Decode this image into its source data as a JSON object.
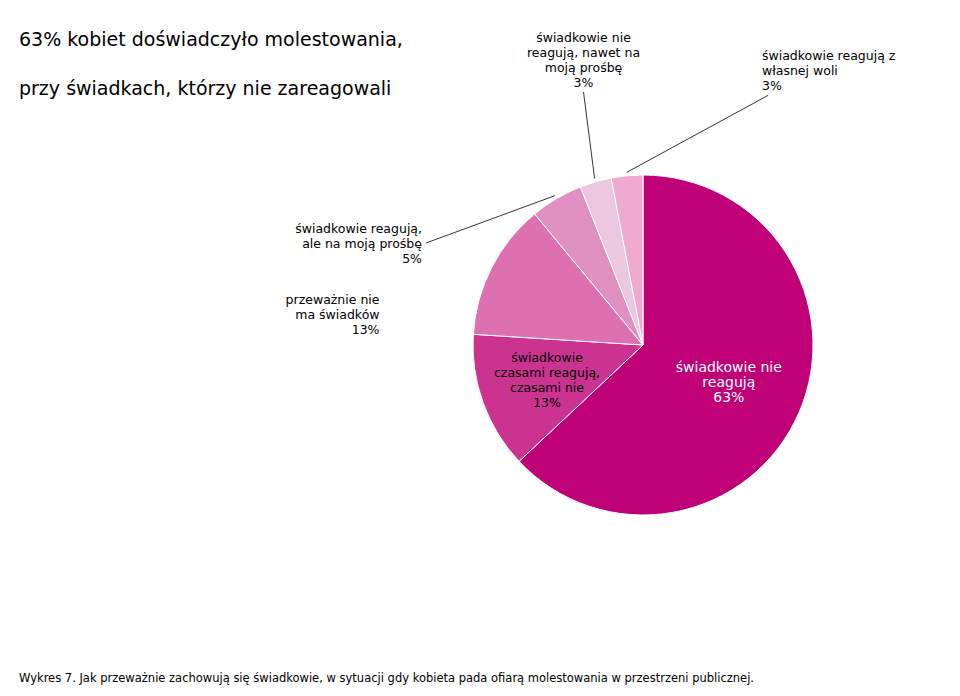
{
  "chart_data": {
    "type": "pie",
    "title": "63% kobiet doświadczyło molestowania,\nprzy świadkach, którzy nie zareagowali",
    "categories": [
      "świadkowie nie\nreagują",
      "świadkowie\nczasami reagują,\nczasami nie",
      "przeważnie nie\nma świadków",
      "świadkowie reagują,\nale na moją prośbę",
      "świadkowie nie\nreagują, nawet na\nmoją prośbę",
      "świadkowie reagują z\nwłasnej woli"
    ],
    "values": [
      63,
      13,
      13,
      5,
      3,
      3
    ],
    "value_labels": [
      "63%",
      "13%",
      "13%",
      "5%",
      "3%",
      "3%"
    ],
    "colors": [
      "#BF0077",
      "#CC3390",
      "#DD70B0",
      "#E090C0",
      "#ECC8E0",
      "#F0AACF"
    ],
    "data_labels": true,
    "caption": "Wykres 7. Jak przeważnie zachowują się świadkowie, w sytuacji gdy kobieta pada ofiarą molestowania w przestrzeni publicznej."
  }
}
